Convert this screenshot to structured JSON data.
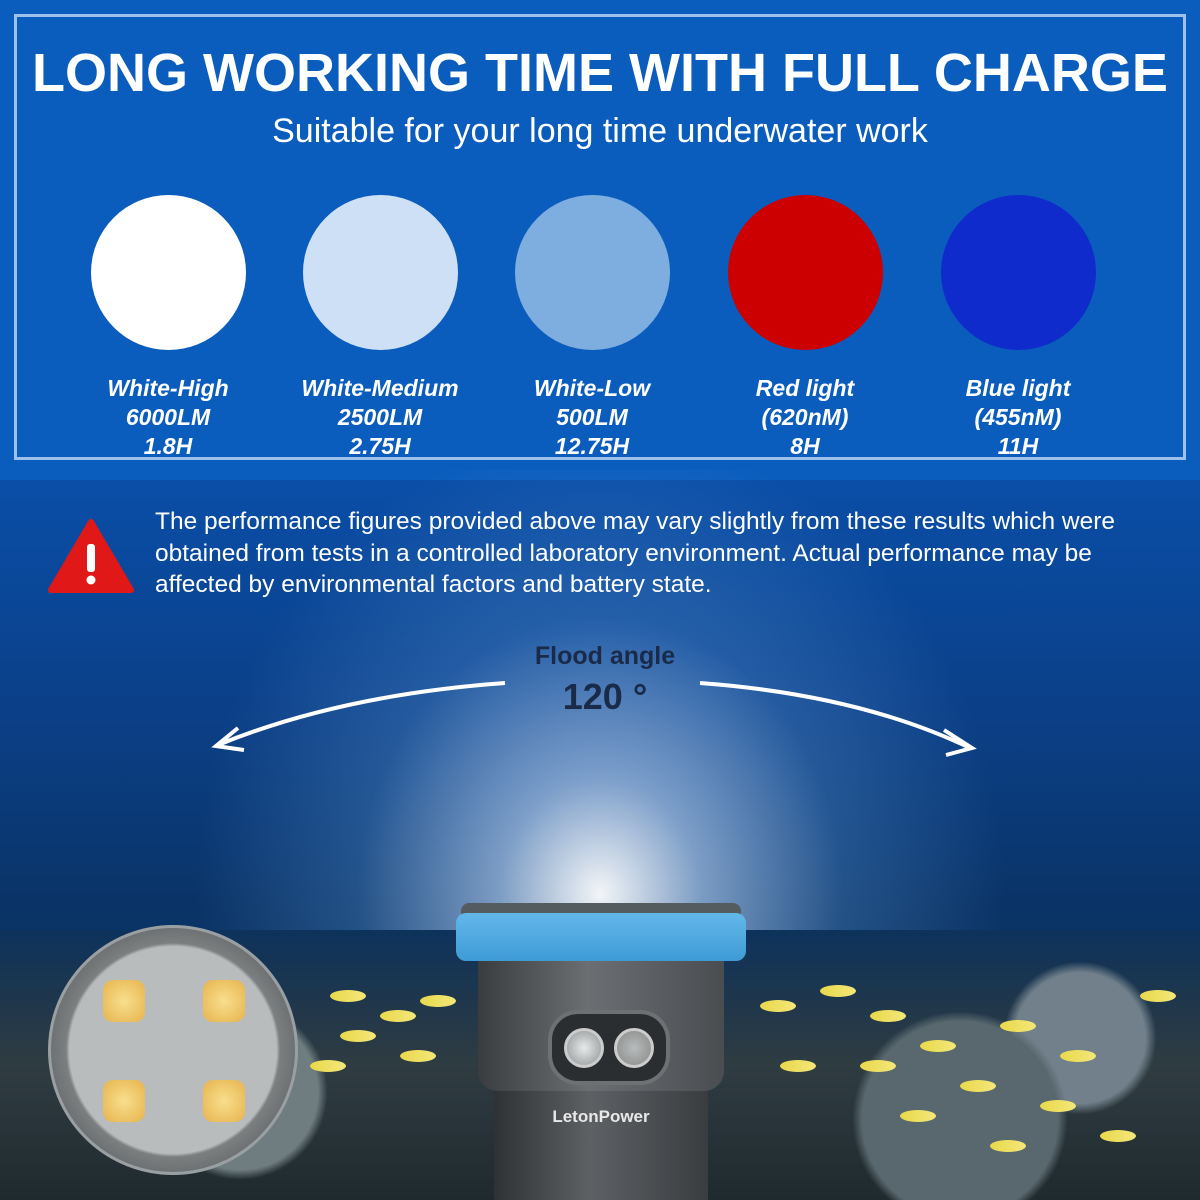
{
  "header": {
    "title": "LONG WORKING TIME WITH FULL CHARGE",
    "subtitle": "Suitable for your long time underwater work"
  },
  "modes": [
    {
      "name": "White-High",
      "spec": "6000LM",
      "runtime": "1.8H",
      "color": "#ffffff"
    },
    {
      "name": "White-Medium",
      "spec": "2500LM",
      "runtime": "2.75H",
      "color": "#cde0f5"
    },
    {
      "name": "White-Low",
      "spec": "500LM",
      "runtime": "12.75H",
      "color": "#7eaedf"
    },
    {
      "name": "Red light",
      "spec": "(620nM)",
      "runtime": "8H",
      "color": "#cc0000"
    },
    {
      "name": "Blue light",
      "spec": "(455nM)",
      "runtime": "11H",
      "color": "#0f2bcc"
    }
  ],
  "notice": {
    "icon": "warning-icon",
    "text": "The performance figures provided above may vary slightly from these results which were obtained from tests in a controlled laboratory environment. Actual performance may be affected by environmental factors and battery state."
  },
  "flood": {
    "label": "Flood angle",
    "value": "120 °"
  },
  "product": {
    "brand": "LetonPower",
    "ring_color": "#4aa6df"
  }
}
